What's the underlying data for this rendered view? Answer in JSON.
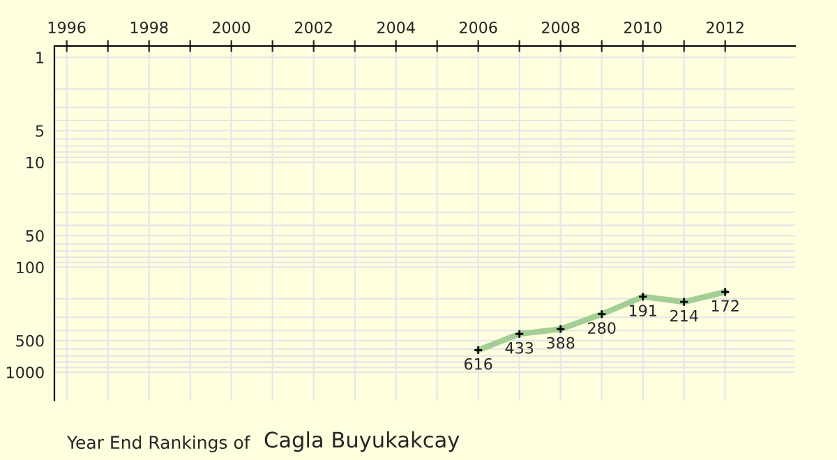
{
  "chart_data": {
    "type": "line",
    "title": "Year End Rankings of",
    "subtitle": "Cagla Buyukakcay",
    "x": [
      2006,
      2007,
      2008,
      2009,
      2010,
      2011,
      2012
    ],
    "series": [
      {
        "color": "#a3cf95",
        "values": [
          616,
          433,
          388,
          280,
          191,
          214,
          172
        ]
      }
    ],
    "data_labels": true,
    "marker": "cross",
    "log": "y",
    "grid": true,
    "legend": false,
    "xlim": [
      1995.7,
      2013.7
    ],
    "xticks": [
      1996,
      {
        "value": 1997,
        "label": null
      },
      1998,
      {
        "value": 1999,
        "label": null
      },
      2000,
      {
        "value": 2001,
        "label": null
      },
      2002,
      {
        "value": 2003,
        "label": null
      },
      2004,
      {
        "value": 2005,
        "label": null
      },
      2006,
      {
        "value": 2007,
        "label": null
      },
      2008,
      {
        "value": 2009,
        "label": null
      },
      2010,
      {
        "value": 2011,
        "label": null
      },
      2012
    ],
    "ylim": [
      1850,
      0.78
    ],
    "yticks": [
      1,
      {
        "value": 2,
        "label": null
      },
      {
        "value": 3,
        "label": null
      },
      {
        "value": 4,
        "label": null
      },
      5,
      {
        "value": 6,
        "label": null
      },
      {
        "value": 7,
        "label": null
      },
      {
        "value": 8,
        "label": null
      },
      {
        "value": 9,
        "label": null
      },
      10,
      {
        "value": 20,
        "label": null
      },
      {
        "value": 30,
        "label": null
      },
      {
        "value": 40,
        "label": null
      },
      50,
      {
        "value": 60,
        "label": null
      },
      {
        "value": 70,
        "label": null
      },
      {
        "value": 80,
        "label": null
      },
      {
        "value": 90,
        "label": null
      },
      100,
      {
        "value": 200,
        "label": null
      },
      {
        "value": 300,
        "label": null
      },
      {
        "value": 400,
        "label": null
      },
      500,
      {
        "value": 600,
        "label": null
      },
      {
        "value": 700,
        "label": null
      },
      {
        "value": 800,
        "label": null
      },
      {
        "value": 900,
        "label": null
      },
      1000
    ]
  }
}
